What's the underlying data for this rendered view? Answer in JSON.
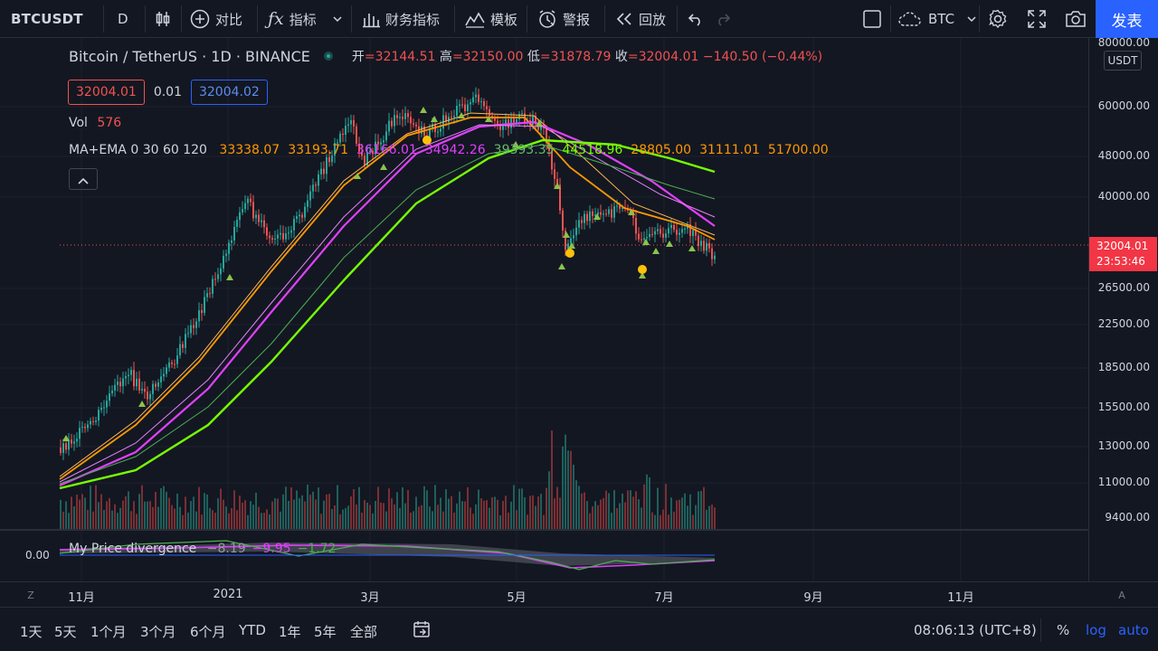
{
  "toolbar": {
    "symbol": "BTCUSDT",
    "interval": "D",
    "compare_label": "对比",
    "indicators_label": "指标",
    "financials_label": "财务指标",
    "templates_label": "模板",
    "alert_label": "警报",
    "replay_label": "回放",
    "compare_symbol": "BTC",
    "publish_label": "发表"
  },
  "legend": {
    "title": "Bitcoin / TetherUS · 1D · BINANCE",
    "open_label": "开",
    "open": "=32144.51",
    "high_label": "高",
    "high": "=32150.00",
    "low_label": "低",
    "low": "=31878.79",
    "close_label": "收",
    "close": "=32004.01",
    "change": "−140.50 (−0.44%)",
    "sell_price": "32004.01",
    "spread": "0.01",
    "buy_price": "32004.02"
  },
  "volume": {
    "label": "Vol",
    "value": "576"
  },
  "ma_ema": {
    "label": "MA+EMA 0 30 60 120",
    "values": [
      "33338.07",
      "33193.71",
      "36166.01",
      "34942.26",
      "39393.35",
      "44518.96",
      "28805.00",
      "31111.01",
      "51700.00"
    ],
    "colors": [
      "#ff9800",
      "#ff9800",
      "#e040fb",
      "#e040fb",
      "#66bb6a",
      "#76ff03",
      "#ff9800",
      "#ff9800",
      "#ff9800"
    ]
  },
  "oscillator": {
    "label": "My Price divergence",
    "values": [
      "−8.19",
      "−9.95",
      "−1.72"
    ],
    "colors": [
      "#9598a1",
      "#e040fb",
      "#4caf50"
    ],
    "axis_value": "0.00"
  },
  "price_axis": {
    "currency": "USDT",
    "ticks": [
      "80000.00",
      "60000.00",
      "48000.00",
      "40000.00",
      "26500.00",
      "22500.00",
      "18500.00",
      "15500.00",
      "13000.00",
      "11000.00",
      "9400.00"
    ],
    "last_price": "32004.01",
    "countdown": "23:53:46"
  },
  "time_axis": {
    "labels": [
      "11月",
      "2021",
      "3月",
      "5月",
      "7月",
      "9月",
      "11月"
    ]
  },
  "bottom_bar": {
    "ranges": [
      "1天",
      "5天",
      "1个月",
      "3个月",
      "6个月",
      "YTD",
      "1年",
      "5年",
      "全部"
    ],
    "clock": "08:06:13 (UTC+8)",
    "percent_label": "%",
    "log_label": "log",
    "auto_label": "auto"
  },
  "colors": {
    "background": "#131722",
    "up": "#26a69a",
    "down": "#ef5350",
    "accent": "#2962ff"
  }
}
